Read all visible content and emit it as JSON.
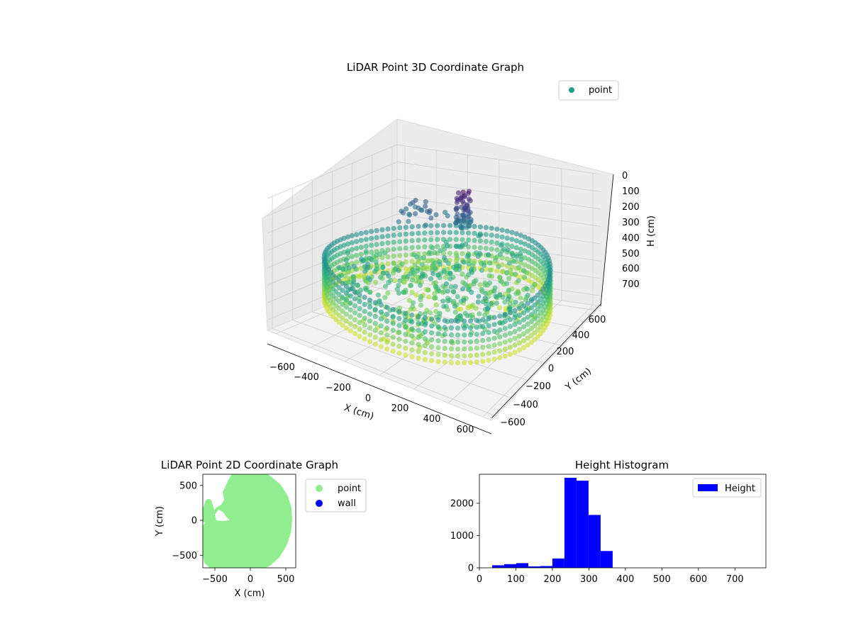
{
  "chart_data": [
    {
      "type": "scatter",
      "projection": "3d",
      "title": "LiDAR Point 3D Coordinate Graph",
      "xlabel": "X (cm)",
      "ylabel": "Y (cm)",
      "zlabel": "H (cm)",
      "x_ticks": [
        "−600",
        "−400",
        "−200",
        "0",
        "200",
        "400",
        "600"
      ],
      "y_ticks": [
        "−600",
        "−400",
        "−200",
        "0",
        "200",
        "400",
        "600"
      ],
      "z_ticks": [
        "0",
        "100",
        "200",
        "300",
        "400",
        "500",
        "600",
        "700"
      ],
      "xlim": [
        -650,
        650
      ],
      "ylim": [
        -650,
        650
      ],
      "zlim": [
        0,
        760
      ],
      "z_inverted": true,
      "colormap": "viridis",
      "series": [
        {
          "name": "point",
          "color": "#21a08a",
          "description_points": "ring of radius ~600 cm at H ~400-650 with inner floor surface and a dark column near H 100-250"
        }
      ],
      "wall_ring": {
        "radius": 600,
        "h_top": 380,
        "h_bottom": 640
      },
      "legend": {
        "labels": [
          "point"
        ],
        "placement": "top-right"
      },
      "grid": true
    },
    {
      "type": "scatter",
      "title": "LiDAR Point 2D Coordinate Graph",
      "xlabel": "X (cm)",
      "ylabel": "Y (cm)",
      "x_ticks": [
        "−500",
        "0",
        "500"
      ],
      "y_ticks": [
        "−500",
        "0",
        "500"
      ],
      "xlim": [
        -670,
        640
      ],
      "ylim": [
        -680,
        660
      ],
      "series": [
        {
          "name": "point",
          "color": "#90ee90"
        },
        {
          "name": "wall",
          "color": "#0000ff"
        }
      ],
      "legend": {
        "labels": [
          "point",
          "wall"
        ],
        "placement": "outside-right"
      }
    },
    {
      "type": "bar",
      "title": "Height Histogram",
      "xlabel": "",
      "ylabel": "",
      "x_ticks": [
        "0",
        "100",
        "200",
        "300",
        "400",
        "500",
        "600",
        "700"
      ],
      "y_ticks": [
        "0",
        "1000",
        "2000"
      ],
      "xlim": [
        0,
        785
      ],
      "ylim": [
        0,
        2900
      ],
      "bin_width": 33,
      "bins": [
        {
          "x": 35,
          "value": 80
        },
        {
          "x": 68,
          "value": 115
        },
        {
          "x": 101,
          "value": 145
        },
        {
          "x": 134,
          "value": 45
        },
        {
          "x": 167,
          "value": 55
        },
        {
          "x": 200,
          "value": 290
        },
        {
          "x": 233,
          "value": 2790
        },
        {
          "x": 266,
          "value": 2700
        },
        {
          "x": 299,
          "value": 1640
        },
        {
          "x": 332,
          "value": 520
        }
      ],
      "series": [
        {
          "name": "Height",
          "color": "#0000ff"
        }
      ],
      "legend": {
        "labels": [
          "Height"
        ],
        "placement": "top-right"
      }
    }
  ]
}
